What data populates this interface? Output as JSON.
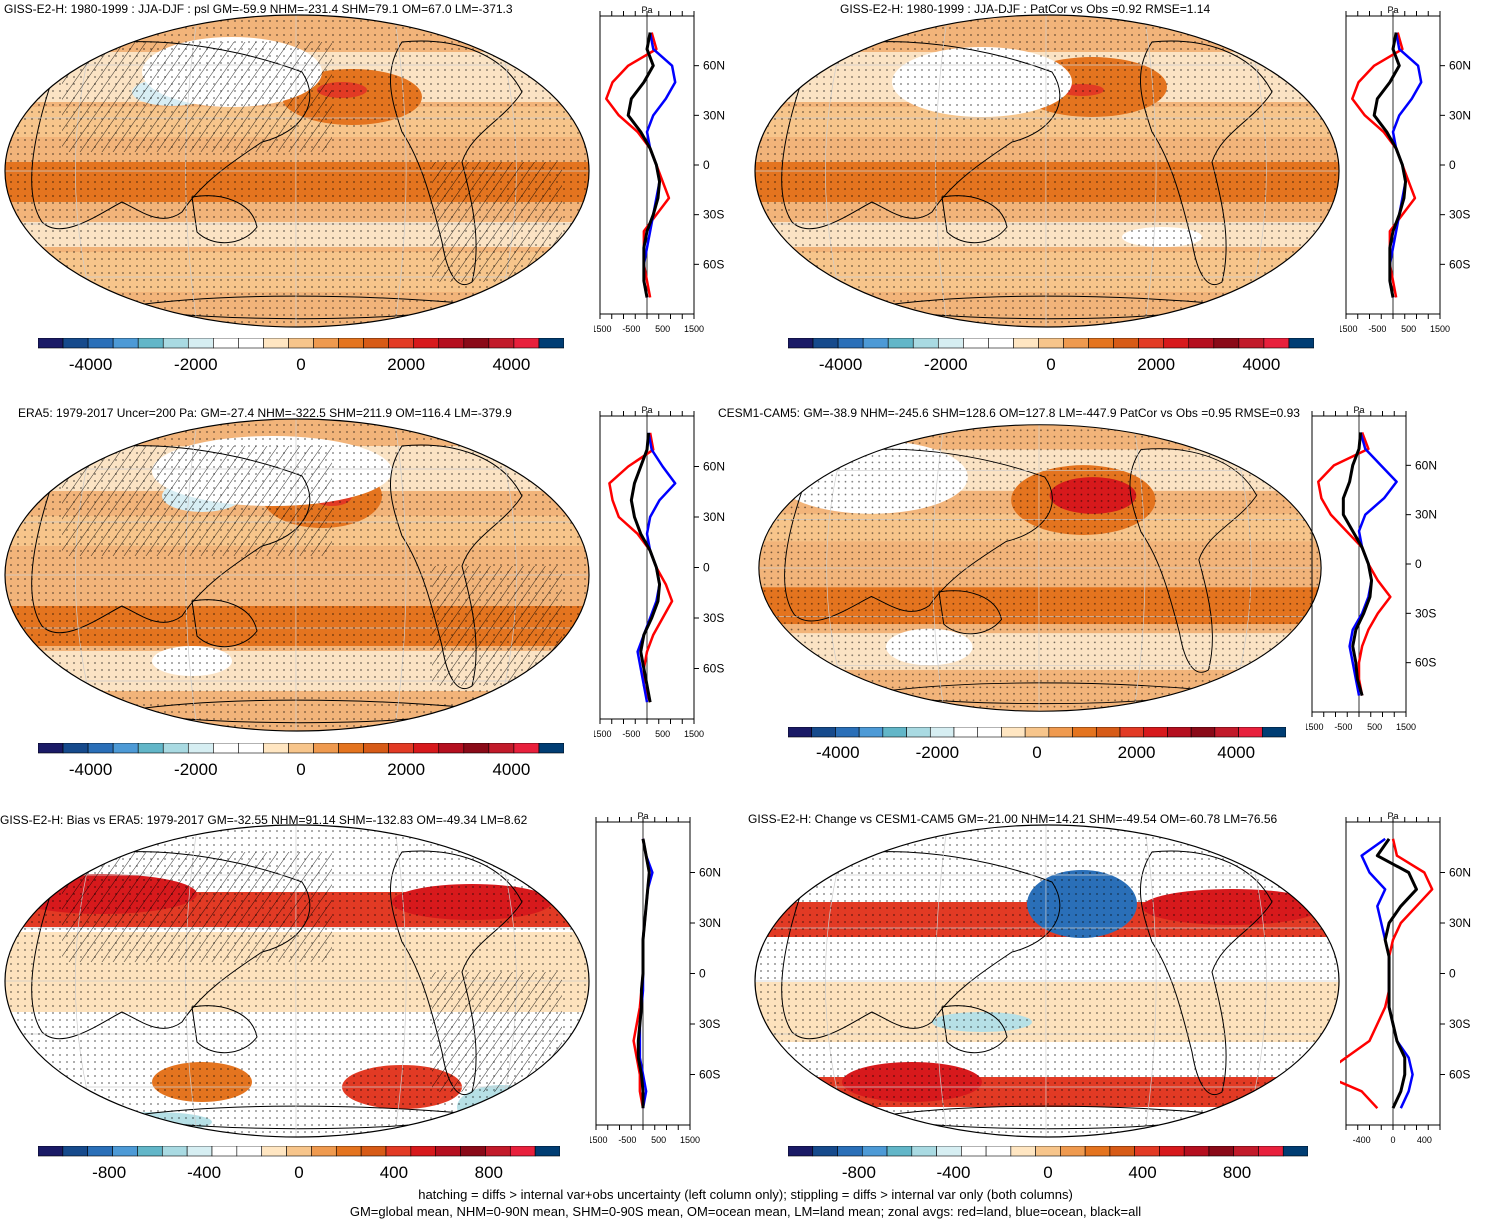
{
  "panels": [
    {
      "id": "p1",
      "title": "GISS-E2-H: 1980-1999 : JJA-DJF : psl GM=-59.9 NHM=-231.4 SHM=79.1 OM=67.0 LM=-371.3",
      "zonal_unit": "Pa",
      "zonal_lat_labels": [
        "60N",
        "30N",
        "0",
        "30S",
        "60S"
      ],
      "zonal_x_labels": [
        "-1500",
        "-500",
        "500",
        "1500"
      ],
      "colorbar_labels": [
        "-4000",
        "-2000",
        "0",
        "2000",
        "4000"
      ],
      "hatching": true
    },
    {
      "id": "p2",
      "title": "GISS-E2-H: 1980-1999 : JJA-DJF : PatCor vs Obs =0.92 RMSE=1.14",
      "zonal_unit": "Pa",
      "zonal_lat_labels": [
        "60N",
        "30N",
        "0",
        "30S",
        "60S"
      ],
      "zonal_x_labels": [
        "-1500",
        "-500",
        "500",
        "1500"
      ],
      "colorbar_labels": [
        "-4000",
        "-2000",
        "0",
        "2000",
        "4000"
      ],
      "hatching": false
    },
    {
      "id": "p3",
      "title": "ERA5: 1979-2017 Uncer=200 Pa: GM=-27.4 NHM=-322.5 SHM=211.9 OM=116.4 LM=-379.9",
      "zonal_unit": "Pa",
      "zonal_lat_labels": [
        "60N",
        "30N",
        "0",
        "30S",
        "60S"
      ],
      "zonal_x_labels": [
        "-1500",
        "-500",
        "500",
        "1500"
      ],
      "colorbar_labels": [
        "-4000",
        "-2000",
        "0",
        "2000",
        "4000"
      ],
      "hatching": true
    },
    {
      "id": "p4",
      "title": "CESM1-CAM5: GM=-38.9 NHM=-245.6 SHM=128.6 OM=127.8 LM=-447.9 PatCor vs Obs =0.95 RMSE=0.93",
      "zonal_unit": "Pa",
      "zonal_lat_labels": [
        "60N",
        "30N",
        "0",
        "30S",
        "60S"
      ],
      "zonal_x_labels": [
        "-1500",
        "-500",
        "500",
        "1500"
      ],
      "colorbar_labels": [
        "-4000",
        "-2000",
        "0",
        "2000",
        "4000"
      ],
      "hatching": false
    },
    {
      "id": "p5",
      "title": "GISS-E2-H: Bias vs ERA5: 1979-2017 GM=-32.55 NHM=91.14 SHM=-132.83 OM=-49.34 LM=8.62",
      "zonal_unit": "Pa",
      "zonal_lat_labels": [
        "60N",
        "30N",
        "0",
        "30S",
        "60S"
      ],
      "zonal_x_labels": [
        "-1500",
        "-500",
        "500",
        "1500"
      ],
      "colorbar_labels": [
        "-800",
        "-400",
        "0",
        "400",
        "800"
      ],
      "hatching": true
    },
    {
      "id": "p6",
      "title": "GISS-E2-H: Change vs CESM1-CAM5 GM=-21.00 NHM=14.21 SHM=-49.54 OM=-60.78 LM=76.56",
      "zonal_unit": "Pa",
      "zonal_lat_labels": [
        "60N",
        "30N",
        "0",
        "30S",
        "60S"
      ],
      "zonal_x_labels": [
        "-400",
        "0",
        "400"
      ],
      "colorbar_labels": [
        "-800",
        "-400",
        "0",
        "400",
        "800"
      ],
      "hatching": false
    }
  ],
  "colors": {
    "land_line": "#ff0000",
    "ocean_line": "#0000ff",
    "all_line": "#000000",
    "colorbar": [
      "#1a1a66",
      "#164a8c",
      "#2a6fb8",
      "#4d9ad6",
      "#62b6c8",
      "#a9dae2",
      "#d6eef2",
      "#ffffff",
      "#ffffff",
      "#ffe6c2",
      "#f7c58b",
      "#ef9a4f",
      "#e4741f",
      "#d75b17",
      "#e23a24",
      "#d7191c",
      "#b50f1f",
      "#8a0a18",
      "#c21a2a",
      "#e8203c",
      "#003d73"
    ]
  },
  "chart_data": [
    {
      "type": "map+zonal",
      "title": "GISS-E2-H: 1980-1999 : JJA-DJF : psl GM=-59.9 NHM=-231.4 SHM=79.1 OM=67.0 LM=-371.3",
      "zonal_lat": [
        80,
        70,
        60,
        50,
        40,
        30,
        20,
        10,
        0,
        -10,
        -20,
        -30,
        -40,
        -50,
        -60,
        -70,
        -80
      ],
      "series": [
        {
          "name": "red",
          "values": [
            150,
            300,
            -600,
            -1100,
            -1300,
            -900,
            -300,
            100,
            300,
            500,
            700,
            300,
            -100,
            -100,
            -100,
            0,
            100
          ]
        },
        {
          "name": "blue",
          "values": [
            100,
            200,
            800,
            900,
            600,
            200,
            0,
            100,
            300,
            400,
            300,
            200,
            100,
            0,
            -100,
            -100,
            0
          ]
        },
        {
          "name": "black",
          "values": [
            100,
            0,
            200,
            -100,
            -500,
            -600,
            -200,
            100,
            300,
            400,
            350,
            200,
            0,
            -100,
            -100,
            -100,
            0
          ]
        }
      ],
      "xlim": [
        -1500,
        1500
      ],
      "ylim": [
        -90,
        90
      ],
      "colorbar_range": [
        -5000,
        5000
      ]
    },
    {
      "type": "map+zonal",
      "title": "GISS-E2-H: 1980-1999 : JJA-DJF : PatCor vs Obs =0.92 RMSE=1.14",
      "zonal_lat": [
        80,
        70,
        60,
        50,
        40,
        30,
        20,
        10,
        0,
        -10,
        -20,
        -30,
        -40,
        -50,
        -60,
        -70,
        -80
      ],
      "series": [
        {
          "name": "red",
          "values": [
            150,
            300,
            -600,
            -1100,
            -1300,
            -900,
            -300,
            100,
            300,
            500,
            700,
            300,
            -100,
            -100,
            -100,
            0,
            100
          ]
        },
        {
          "name": "blue",
          "values": [
            100,
            200,
            800,
            900,
            600,
            200,
            0,
            100,
            300,
            400,
            300,
            200,
            100,
            0,
            -100,
            -100,
            0
          ]
        },
        {
          "name": "black",
          "values": [
            100,
            0,
            200,
            -100,
            -500,
            -600,
            -200,
            100,
            300,
            400,
            350,
            200,
            0,
            -100,
            -100,
            -100,
            0
          ]
        }
      ],
      "xlim": [
        -1500,
        1500
      ],
      "ylim": [
        -90,
        90
      ],
      "colorbar_range": [
        -5000,
        5000
      ]
    },
    {
      "type": "map+zonal",
      "title": "ERA5: 1979-2017 Uncer=200 Pa: GM=-27.4 NHM=-322.5 SHM=211.9 OM=116.4 LM=-379.9",
      "zonal_lat": [
        80,
        70,
        60,
        50,
        40,
        30,
        20,
        10,
        0,
        -10,
        -20,
        -30,
        -40,
        -50,
        -60,
        -70,
        -80
      ],
      "series": [
        {
          "name": "red",
          "values": [
            100,
            200,
            -600,
            -1200,
            -1100,
            -900,
            -300,
            100,
            300,
            600,
            800,
            500,
            200,
            0,
            -100,
            -100,
            100
          ]
        },
        {
          "name": "blue",
          "values": [
            50,
            150,
            500,
            900,
            400,
            100,
            0,
            100,
            300,
            400,
            300,
            100,
            -100,
            -300,
            -200,
            -100,
            0
          ]
        },
        {
          "name": "black",
          "values": [
            50,
            0,
            -200,
            -400,
            -500,
            -400,
            -200,
            100,
            300,
            400,
            350,
            150,
            -100,
            -200,
            -100,
            0,
            100
          ]
        }
      ],
      "xlim": [
        -1500,
        1500
      ],
      "ylim": [
        -90,
        90
      ],
      "colorbar_range": [
        -5000,
        5000
      ]
    },
    {
      "type": "map+zonal",
      "title": "CESM1-CAM5: GM=-38.9 NHM=-245.6 SHM=128.6 OM=127.8 LM=-447.9 PatCor vs Obs =0.95 RMSE=0.93",
      "zonal_lat": [
        80,
        70,
        60,
        50,
        40,
        30,
        20,
        10,
        0,
        -10,
        -20,
        -30,
        -40,
        -50,
        -60,
        -70,
        -80
      ],
      "series": [
        {
          "name": "red",
          "values": [
            100,
            300,
            -800,
            -1300,
            -1200,
            -900,
            -400,
            100,
            300,
            600,
            1000,
            600,
            300,
            100,
            0,
            0,
            100
          ]
        },
        {
          "name": "blue",
          "values": [
            50,
            200,
            700,
            1200,
            800,
            200,
            0,
            100,
            300,
            400,
            300,
            100,
            -200,
            -300,
            -200,
            -100,
            0
          ]
        },
        {
          "name": "black",
          "values": [
            50,
            0,
            -200,
            -300,
            -500,
            -500,
            -200,
            100,
            300,
            400,
            350,
            150,
            -100,
            -200,
            -100,
            -50,
            100
          ]
        }
      ],
      "xlim": [
        -1500,
        1500
      ],
      "ylim": [
        -90,
        90
      ],
      "colorbar_range": [
        -5000,
        5000
      ]
    },
    {
      "type": "map+zonal",
      "title": "GISS-E2-H: Bias vs ERA5: 1979-2017 GM=-32.55 NHM=91.14 SHM=-132.83 OM=-49.34 LM=8.62",
      "zonal_lat": [
        80,
        70,
        60,
        50,
        40,
        30,
        20,
        10,
        0,
        -10,
        -20,
        -30,
        -40,
        -50,
        -60,
        -70,
        -80
      ],
      "series": [
        {
          "name": "red",
          "values": [
            0,
            100,
            200,
            150,
            100,
            50,
            0,
            0,
            0,
            -50,
            -100,
            -200,
            -300,
            -200,
            -100,
            -100,
            0
          ]
        },
        {
          "name": "blue",
          "values": [
            0,
            100,
            300,
            150,
            100,
            50,
            0,
            0,
            0,
            0,
            -50,
            -100,
            -100,
            -100,
            0,
            100,
            0
          ]
        },
        {
          "name": "black",
          "values": [
            0,
            100,
            200,
            150,
            100,
            50,
            0,
            0,
            0,
            -50,
            -50,
            -100,
            -150,
            -150,
            -50,
            0,
            0
          ]
        }
      ],
      "xlim": [
        -1500,
        1500
      ],
      "ylim": [
        -90,
        90
      ],
      "colorbar_range": [
        -1100,
        1100
      ]
    },
    {
      "type": "map+zonal",
      "title": "GISS-E2-H: Change vs CESM1-CAM5 GM=-21.00 NHM=14.21 SHM=-49.54 OM=-60.78 LM=76.56",
      "zonal_lat": [
        80,
        70,
        60,
        50,
        40,
        30,
        20,
        10,
        0,
        -10,
        -20,
        -30,
        -40,
        -50,
        -60,
        -70,
        -80
      ],
      "series": [
        {
          "name": "red",
          "values": [
            0,
            50,
            400,
            500,
            300,
            100,
            0,
            -50,
            -50,
            -50,
            -100,
            -200,
            -300,
            -600,
            -900,
            -400,
            -200
          ]
        },
        {
          "name": "blue",
          "values": [
            -100,
            -400,
            -300,
            -100,
            -200,
            -150,
            -100,
            -50,
            -50,
            -50,
            -50,
            0,
            50,
            200,
            250,
            200,
            100
          ]
        },
        {
          "name": "black",
          "values": [
            -50,
            -200,
            200,
            300,
            100,
            -50,
            -100,
            -50,
            -50,
            -50,
            -50,
            0,
            50,
            150,
            150,
            100,
            0
          ]
        }
      ],
      "xlim": [
        -600,
        600
      ],
      "ylim": [
        -90,
        90
      ],
      "colorbar_range": [
        -1100,
        1100
      ]
    }
  ],
  "footer": {
    "line1": "hatching = diffs > internal var+obs uncertainty (left column only); stippling = diffs > internal var only (both columns)",
    "line2": "GM=global mean, NHM=0-90N mean, SHM=0-90S mean, OM=ocean mean, LM=land mean; zonal avgs: red=land, blue=ocean, black=all"
  }
}
